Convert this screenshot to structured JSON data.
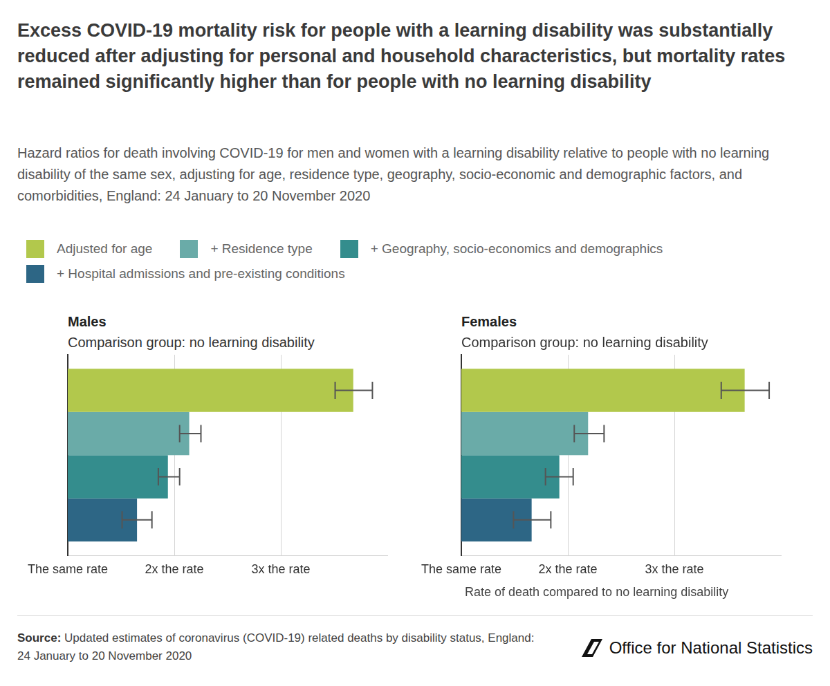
{
  "title": "Excess COVID-19 mortality risk for people with a learning disability was substantially reduced after adjusting for personal and household characteristics, but mortality rates remained significantly higher than for people with no learning disability",
  "subtitle": "Hazard ratios for death involving COVID-19 for men and women with a learning disability relative to people with no learning disability of the same sex, adjusting for age, residence type, geography, socio-economic and demographic factors, and comorbidities, England: 24 January to 20 November 2020",
  "source_label": "Source:",
  "source": "Updated estimates of coronavirus (COVID-19) related deaths by disability status, England: 24 January to 20 November 2020",
  "publisher": "Office for National Statistics",
  "chart_data": [
    {
      "type": "bar",
      "orientation": "horizontal",
      "title": "Males",
      "subtitle": "Comparison group: no learning disability",
      "categories": [
        null
      ],
      "legend": "top",
      "grid": true,
      "tick_labels": "x",
      "xlim": [
        1,
        4
      ],
      "xticks": [
        {
          "value": 1,
          "label": "The same rate"
        },
        {
          "value": 2,
          "label": "2x the rate"
        },
        {
          "value": 3,
          "label": "3x the rate"
        }
      ],
      "series": [
        {
          "name": "Adjusted for age",
          "color": "#b2c84c",
          "values": [
            3.68
          ],
          "error": [
            [
              3.51,
              3.86
            ]
          ]
        },
        {
          "name": "+ Residence type",
          "color": "#6aaba8",
          "values": [
            2.14
          ],
          "error": [
            [
              2.05,
              2.25
            ]
          ]
        },
        {
          "name": "+ Geography, socio-economics and demographics",
          "color": "#348d8d",
          "values": [
            1.94
          ],
          "error": [
            [
              1.85,
              2.05
            ]
          ]
        },
        {
          "name": "+ Hospital admissions and pre-existing conditions",
          "color": "#2d6685",
          "values": [
            1.65
          ],
          "error": [
            [
              1.51,
              1.79
            ]
          ]
        }
      ]
    },
    {
      "type": "bar",
      "orientation": "horizontal",
      "title": "Females",
      "subtitle": "Comparison group: no learning disability",
      "xlabel": "Rate of death compared to no learning disability",
      "categories": [
        null
      ],
      "legend": "top",
      "grid": true,
      "tick_labels": "x",
      "xlim": [
        1,
        4
      ],
      "xticks": [
        {
          "value": 1,
          "label": "The same rate"
        },
        {
          "value": 2,
          "label": "2x the rate"
        },
        {
          "value": 3,
          "label": "3x the rate"
        }
      ],
      "series": [
        {
          "name": "Adjusted for age",
          "color": "#b2c84c",
          "values": [
            3.66
          ],
          "error": [
            [
              3.44,
              3.89
            ]
          ]
        },
        {
          "name": "+ Residence type",
          "color": "#6aaba8",
          "values": [
            2.19
          ],
          "error": [
            [
              2.06,
              2.34
            ]
          ]
        },
        {
          "name": "+ Geography, socio-economics and demographics",
          "color": "#348d8d",
          "values": [
            1.92
          ],
          "error": [
            [
              1.79,
              2.05
            ]
          ]
        },
        {
          "name": "+ Hospital admissions and pre-existing conditions",
          "color": "#2d6685",
          "values": [
            1.66
          ],
          "error": [
            [
              1.49,
              1.84
            ]
          ]
        }
      ]
    }
  ]
}
